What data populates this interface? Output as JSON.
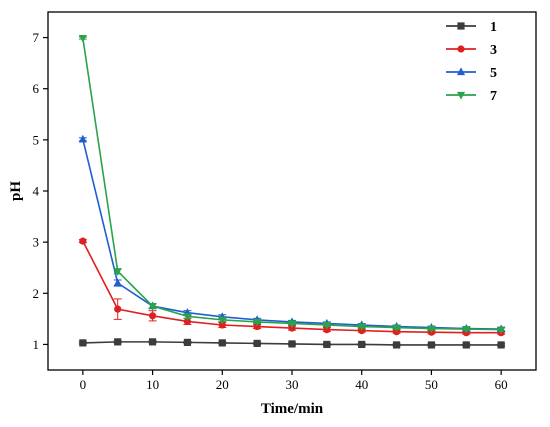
{
  "chart_data": {
    "type": "line",
    "title": "",
    "xlabel": "Time/min",
    "ylabel": "pH",
    "xlim": [
      -5,
      65
    ],
    "ylim": [
      0.5,
      7.5
    ],
    "xticks": [
      0,
      10,
      20,
      30,
      40,
      50,
      60
    ],
    "yticks": [
      1,
      2,
      3,
      4,
      5,
      6,
      7
    ],
    "grid": false,
    "legend": "top-right",
    "x": [
      0,
      5,
      10,
      15,
      20,
      25,
      30,
      35,
      40,
      45,
      50,
      55,
      60
    ],
    "series": [
      {
        "name": "1",
        "color": "#3c3c3c",
        "marker": "square",
        "values": [
          1.03,
          1.05,
          1.05,
          1.04,
          1.03,
          1.02,
          1.01,
          1.0,
          1.0,
          0.99,
          0.99,
          0.99,
          0.99
        ],
        "errors": [
          0.02,
          0.02,
          0.02,
          0.02,
          0.02,
          0.02,
          0.02,
          0.02,
          0.02,
          0.02,
          0.02,
          0.02,
          0.02
        ]
      },
      {
        "name": "3",
        "color": "#e02020",
        "marker": "circle",
        "values": [
          3.02,
          1.69,
          1.56,
          1.45,
          1.38,
          1.35,
          1.32,
          1.29,
          1.27,
          1.25,
          1.24,
          1.23,
          1.23
        ],
        "errors": [
          0.03,
          0.2,
          0.1,
          0.06,
          0.05,
          0.04,
          0.04,
          0.04,
          0.03,
          0.03,
          0.03,
          0.03,
          0.03
        ]
      },
      {
        "name": "5",
        "color": "#1f5fd0",
        "marker": "triangle-up",
        "values": [
          5.01,
          2.2,
          1.75,
          1.62,
          1.54,
          1.48,
          1.44,
          1.41,
          1.38,
          1.35,
          1.33,
          1.31,
          1.3
        ],
        "errors": [
          0.03,
          0.06,
          0.05,
          0.04,
          0.04,
          0.03,
          0.03,
          0.03,
          0.03,
          0.03,
          0.03,
          0.03,
          0.03
        ]
      },
      {
        "name": "7",
        "color": "#2aa34a",
        "marker": "triangle-down",
        "values": [
          6.99,
          2.43,
          1.75,
          1.55,
          1.48,
          1.44,
          1.41,
          1.38,
          1.35,
          1.33,
          1.31,
          1.3,
          1.29
        ],
        "errors": [
          0.02,
          0.05,
          0.04,
          0.04,
          0.03,
          0.03,
          0.03,
          0.03,
          0.03,
          0.03,
          0.03,
          0.03,
          0.03
        ]
      }
    ]
  }
}
